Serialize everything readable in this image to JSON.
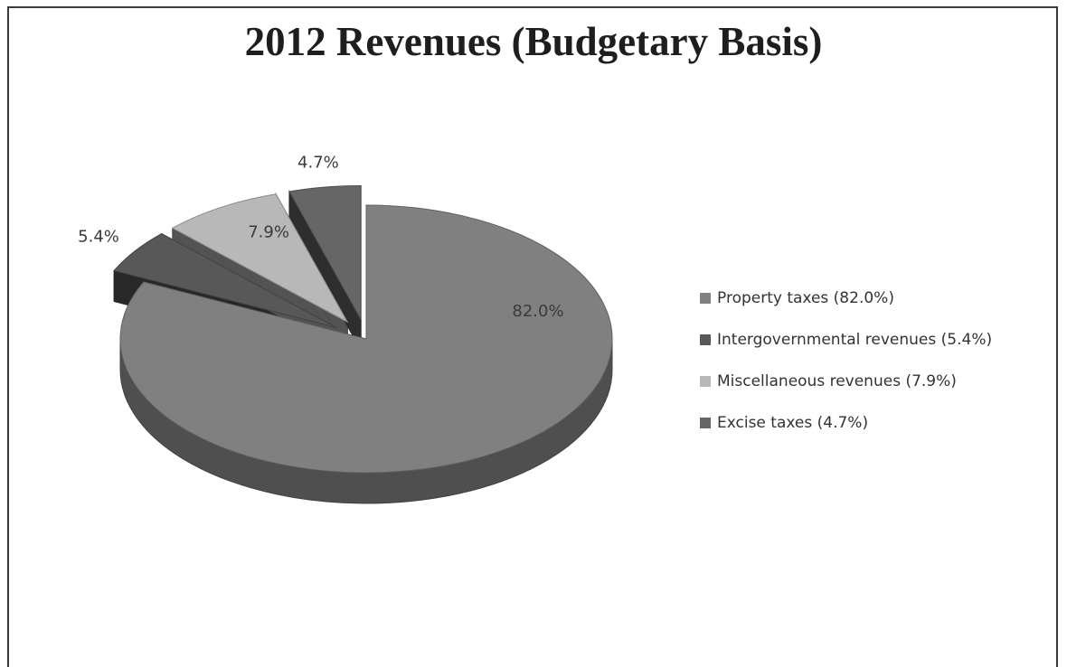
{
  "chart_data": {
    "type": "pie",
    "title": "2012 Revenues (Budgetary Basis)",
    "labels": [
      "Property taxes (82.0%)",
      "Intergovernmental revenues (5.4%)",
      "Miscellaneous revenues (7.9%)",
      "Excise taxes (4.7%)"
    ],
    "values": [
      82.0,
      5.4,
      7.9,
      4.7
    ],
    "data_labels": [
      "82.0%",
      "5.4%",
      "7.9%",
      "4.7%"
    ],
    "colors": [
      "#808080",
      "#585858",
      "#b8b8b8",
      "#666666"
    ],
    "legend_position": "right",
    "style": "3d-exploded"
  }
}
